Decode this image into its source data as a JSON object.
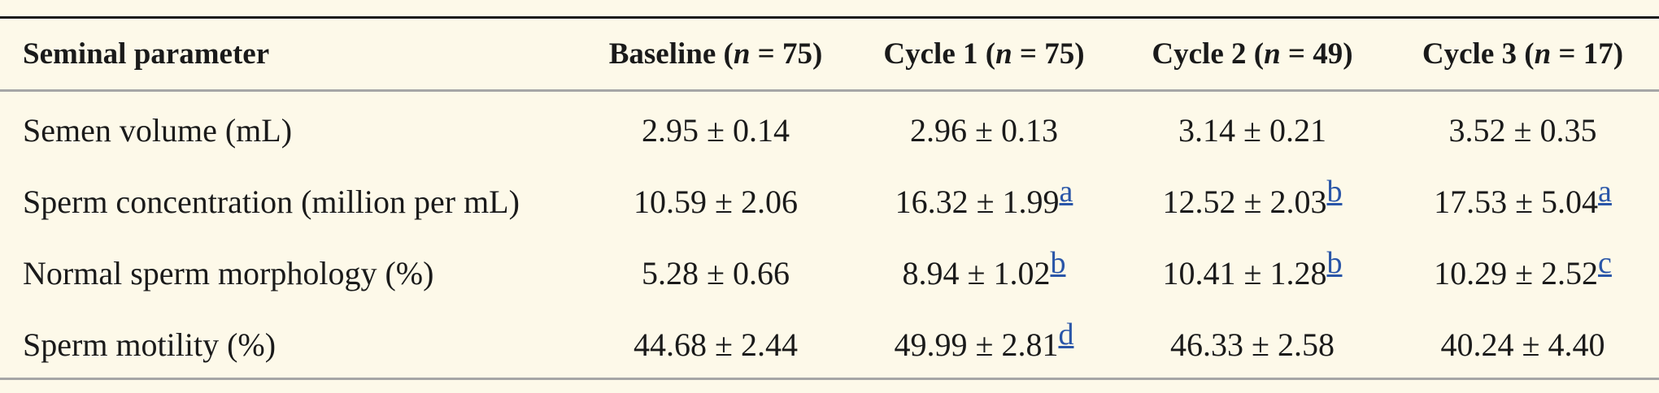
{
  "table": {
    "header": {
      "parameter": "Seminal parameter",
      "columns": [
        {
          "label": "Baseline",
          "n_var": "n",
          "n_rest": " = 75)"
        },
        {
          "label": "Cycle 1",
          "n_var": "n",
          "n_rest": " = 75)"
        },
        {
          "label": "Cycle 2",
          "n_var": "n",
          "n_rest": " = 49)"
        },
        {
          "label": "Cycle 3",
          "n_var": "n",
          "n_rest": " = 17)"
        }
      ]
    },
    "rows": [
      {
        "label": "Semen volume (mL)",
        "cells": [
          {
            "value": "2.95 ± 0.14",
            "note": ""
          },
          {
            "value": "2.96 ± 0.13",
            "note": ""
          },
          {
            "value": "3.14 ± 0.21",
            "note": ""
          },
          {
            "value": "3.52 ± 0.35",
            "note": ""
          }
        ]
      },
      {
        "label": "Sperm concentration (million per mL)",
        "cells": [
          {
            "value": "10.59 ± 2.06",
            "note": ""
          },
          {
            "value": "16.32 ± 1.99",
            "note": "a"
          },
          {
            "value": "12.52 ± 2.03",
            "note": "b"
          },
          {
            "value": "17.53 ± 5.04",
            "note": "a"
          }
        ]
      },
      {
        "label": "Normal sperm morphology (%)",
        "cells": [
          {
            "value": "5.28 ± 0.66",
            "note": ""
          },
          {
            "value": "8.94 ± 1.02",
            "note": "b"
          },
          {
            "value": "10.41 ± 1.28",
            "note": "b"
          },
          {
            "value": "10.29 ± 2.52",
            "note": "c"
          }
        ]
      },
      {
        "label": "Sperm motility (%)",
        "cells": [
          {
            "value": "44.68 ± 2.44",
            "note": ""
          },
          {
            "value": "49.99 ± 2.81",
            "note": "d"
          },
          {
            "value": "46.33 ± 2.58",
            "note": ""
          },
          {
            "value": "40.24 ± 4.40",
            "note": ""
          }
        ]
      }
    ]
  }
}
